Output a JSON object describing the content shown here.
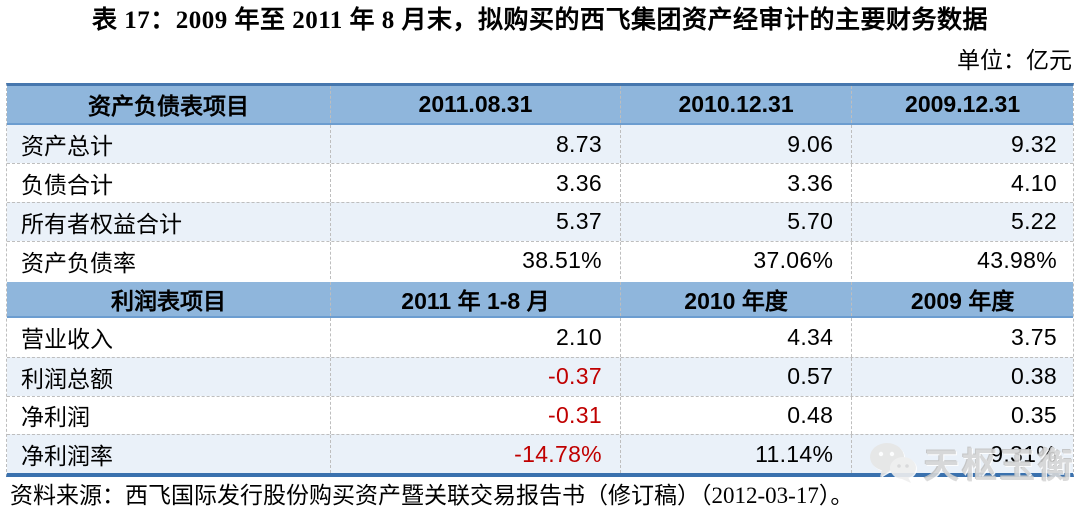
{
  "title": "表 17：2009 年至 2011 年 8 月末，拟购买的西飞集团资产经审计的主要财务数据",
  "unit_label": "单位：亿元",
  "table": {
    "sections": [
      {
        "header": [
          "资产负债表项目",
          "2011.08.31",
          "2010.12.31",
          "2009.12.31"
        ],
        "rows": [
          {
            "label": "资产总计",
            "values": [
              "8.73",
              "9.06",
              "9.32"
            ],
            "neg": [
              false,
              false,
              false
            ],
            "shaded": true
          },
          {
            "label": "负债合计",
            "values": [
              "3.36",
              "3.36",
              "4.10"
            ],
            "neg": [
              false,
              false,
              false
            ],
            "shaded": false
          },
          {
            "label": "所有者权益合计",
            "values": [
              "5.37",
              "5.70",
              "5.22"
            ],
            "neg": [
              false,
              false,
              false
            ],
            "shaded": true
          },
          {
            "label": "资产负债率",
            "values": [
              "38.51%",
              "37.06%",
              "43.98%"
            ],
            "neg": [
              false,
              false,
              false
            ],
            "shaded": false
          }
        ]
      },
      {
        "header": [
          "利润表项目",
          "2011 年 1-8 月",
          "2010 年度",
          "2009 年度"
        ],
        "rows": [
          {
            "label": "营业收入",
            "values": [
              "2.10",
              "4.34",
              "3.75"
            ],
            "neg": [
              false,
              false,
              false
            ],
            "shaded": false
          },
          {
            "label": "利润总额",
            "values": [
              "-0.37",
              "0.57",
              "0.38"
            ],
            "neg": [
              true,
              false,
              false
            ],
            "shaded": true
          },
          {
            "label": "净利润",
            "values": [
              "-0.31",
              "0.48",
              "0.35"
            ],
            "neg": [
              true,
              false,
              false
            ],
            "shaded": false
          },
          {
            "label": "净利润率",
            "values": [
              "-14.78%",
              "11.14%",
              "9.31%"
            ],
            "neg": [
              true,
              false,
              false
            ],
            "shaded": true
          }
        ]
      }
    ]
  },
  "source": "资料来源：西飞国际发行股份购买资产暨关联交易报告书（修订稿）（2012-03-17）。",
  "watermark": {
    "icon": "wechat-icon",
    "text": "天枢玉衡"
  },
  "colors": {
    "header_bg": "#8FB6DC",
    "stripe_bg": "#EAF1F9",
    "table_top_border": "#4677AE",
    "table_bottom_border": "#3A71AE",
    "header_underline": "#6C9DD0",
    "dashed_grid": "#BEBEBE",
    "negative_text": "#C00000",
    "watermark_gray": "#D6D6D6"
  }
}
